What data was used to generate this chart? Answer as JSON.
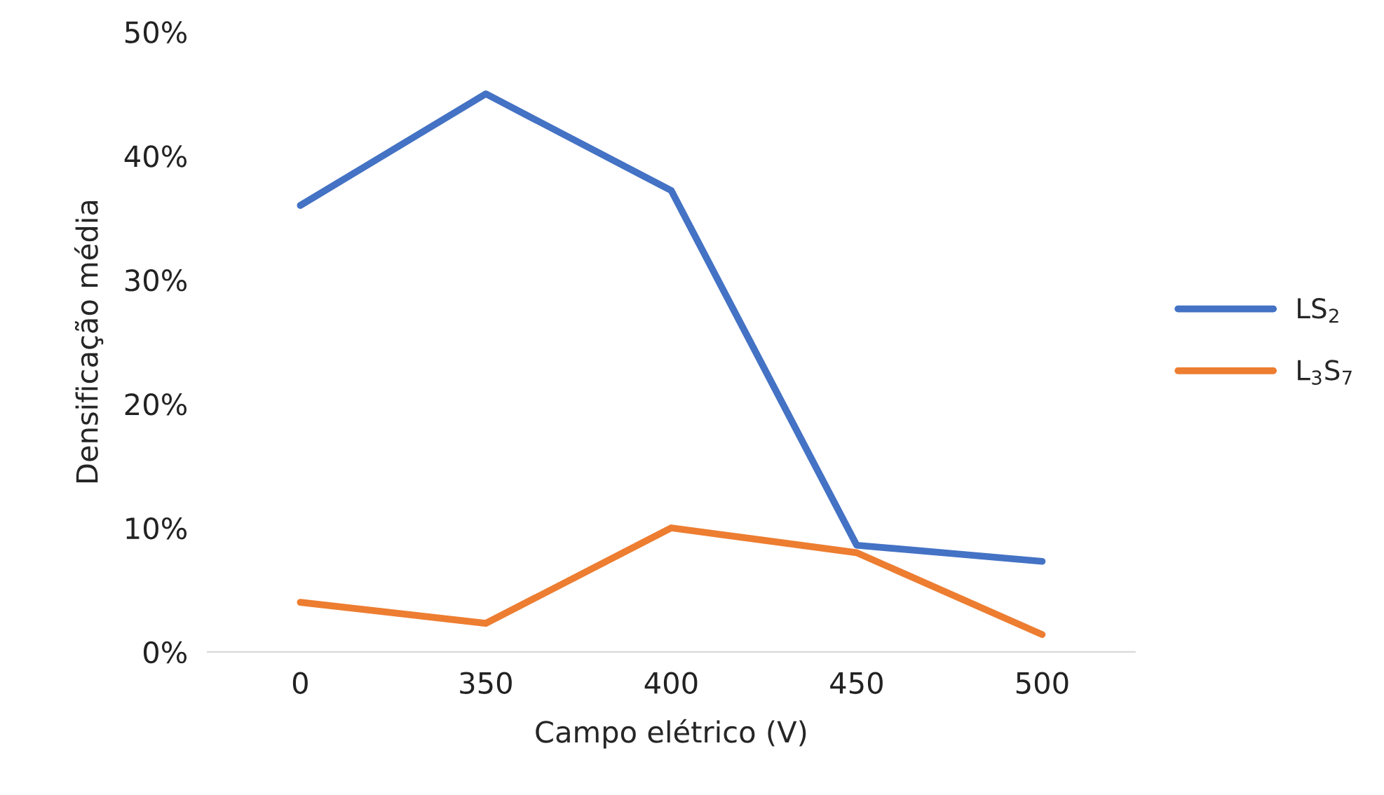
{
  "chart_data": {
    "type": "line",
    "xlabel": "Campo elétrico (V)",
    "ylabel": "Densificação média",
    "categories": [
      "0",
      "350",
      "400",
      "450",
      "500"
    ],
    "series": [
      {
        "name": "LS$_{2}$",
        "color": "#4472c4",
        "values": [
          36.0,
          45.0,
          37.2,
          8.6,
          7.3
        ]
      },
      {
        "name": "L$_{3}$S$_{7}$",
        "color": "#ed7d31",
        "values": [
          4.0,
          2.3,
          10.0,
          8.0,
          1.4
        ]
      }
    ],
    "ylim": [
      0,
      50
    ],
    "yticks": [
      {
        "value": 0,
        "label": "0%"
      },
      {
        "value": 10,
        "label": "10%"
      },
      {
        "value": 20,
        "label": "20%"
      },
      {
        "value": 30,
        "label": "30%"
      },
      {
        "value": 40,
        "label": "40%"
      },
      {
        "value": 50,
        "label": "50%"
      }
    ],
    "grid": false,
    "legend": "right",
    "marker": "none",
    "line_style": "solid"
  }
}
